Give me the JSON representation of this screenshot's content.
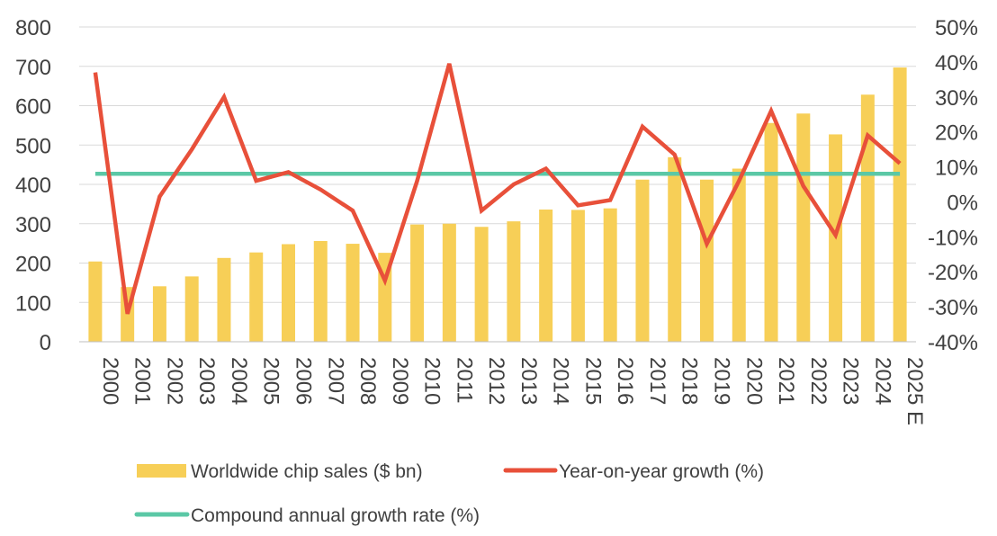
{
  "chart_data": {
    "type": "bar",
    "title": "",
    "xlabel": "",
    "ylabel": "",
    "categories": [
      "2000",
      "2001",
      "2002",
      "2003",
      "2004",
      "2005",
      "2006",
      "2007",
      "2008",
      "2009",
      "2010",
      "2011",
      "2012",
      "2013",
      "2014",
      "2015",
      "2016",
      "2017",
      "2018",
      "2019",
      "2020",
      "2021",
      "2022",
      "2023",
      "2024",
      "2025 E"
    ],
    "ylim": [
      0,
      800
    ],
    "y2lim": [
      -40,
      50
    ],
    "y_ticks": [
      0,
      100,
      200,
      300,
      400,
      500,
      600,
      700,
      800
    ],
    "y2_ticks": [
      -40,
      -30,
      -20,
      -10,
      0,
      10,
      20,
      30,
      40,
      50
    ],
    "y_tick_labels": [
      "0",
      "100",
      "200",
      "300",
      "400",
      "500",
      "600",
      "700",
      "800"
    ],
    "y2_tick_labels": [
      "-40%",
      "-30%",
      "-20%",
      "-10%",
      "0%",
      "10%",
      "20%",
      "30%",
      "40%",
      "50%"
    ],
    "grid": true,
    "legend_position": "bottom",
    "series": [
      {
        "name": "Worldwide chip sales ($ bn)",
        "type": "bar",
        "axis": "left",
        "color": "#F7CF57",
        "values": [
          204,
          139,
          141,
          166,
          213,
          227,
          248,
          256,
          249,
          226,
          298,
          300,
          292,
          306,
          336,
          335,
          339,
          412,
          469,
          412,
          440,
          556,
          580,
          527,
          628,
          697
        ]
      },
      {
        "name": "Year-on-year growth  (%)",
        "type": "line",
        "axis": "right",
        "color": "#E8503A",
        "values": [
          37,
          -32,
          1.5,
          15,
          30,
          6,
          8.5,
          3.5,
          -2.5,
          -22.5,
          6,
          39.5,
          -2.5,
          5,
          9.5,
          -1,
          0.5,
          21.5,
          13.5,
          -12,
          6,
          26,
          4.5,
          -9.5,
          19,
          11
        ]
      },
      {
        "name": "Compound annual growth rate (%)",
        "type": "line",
        "axis": "right",
        "color": "#5BC8A6",
        "values": [
          8,
          8,
          8,
          8,
          8,
          8,
          8,
          8,
          8,
          8,
          8,
          8,
          8,
          8,
          8,
          8,
          8,
          8,
          8,
          8,
          8,
          8,
          8,
          8,
          8,
          8
        ]
      }
    ]
  }
}
